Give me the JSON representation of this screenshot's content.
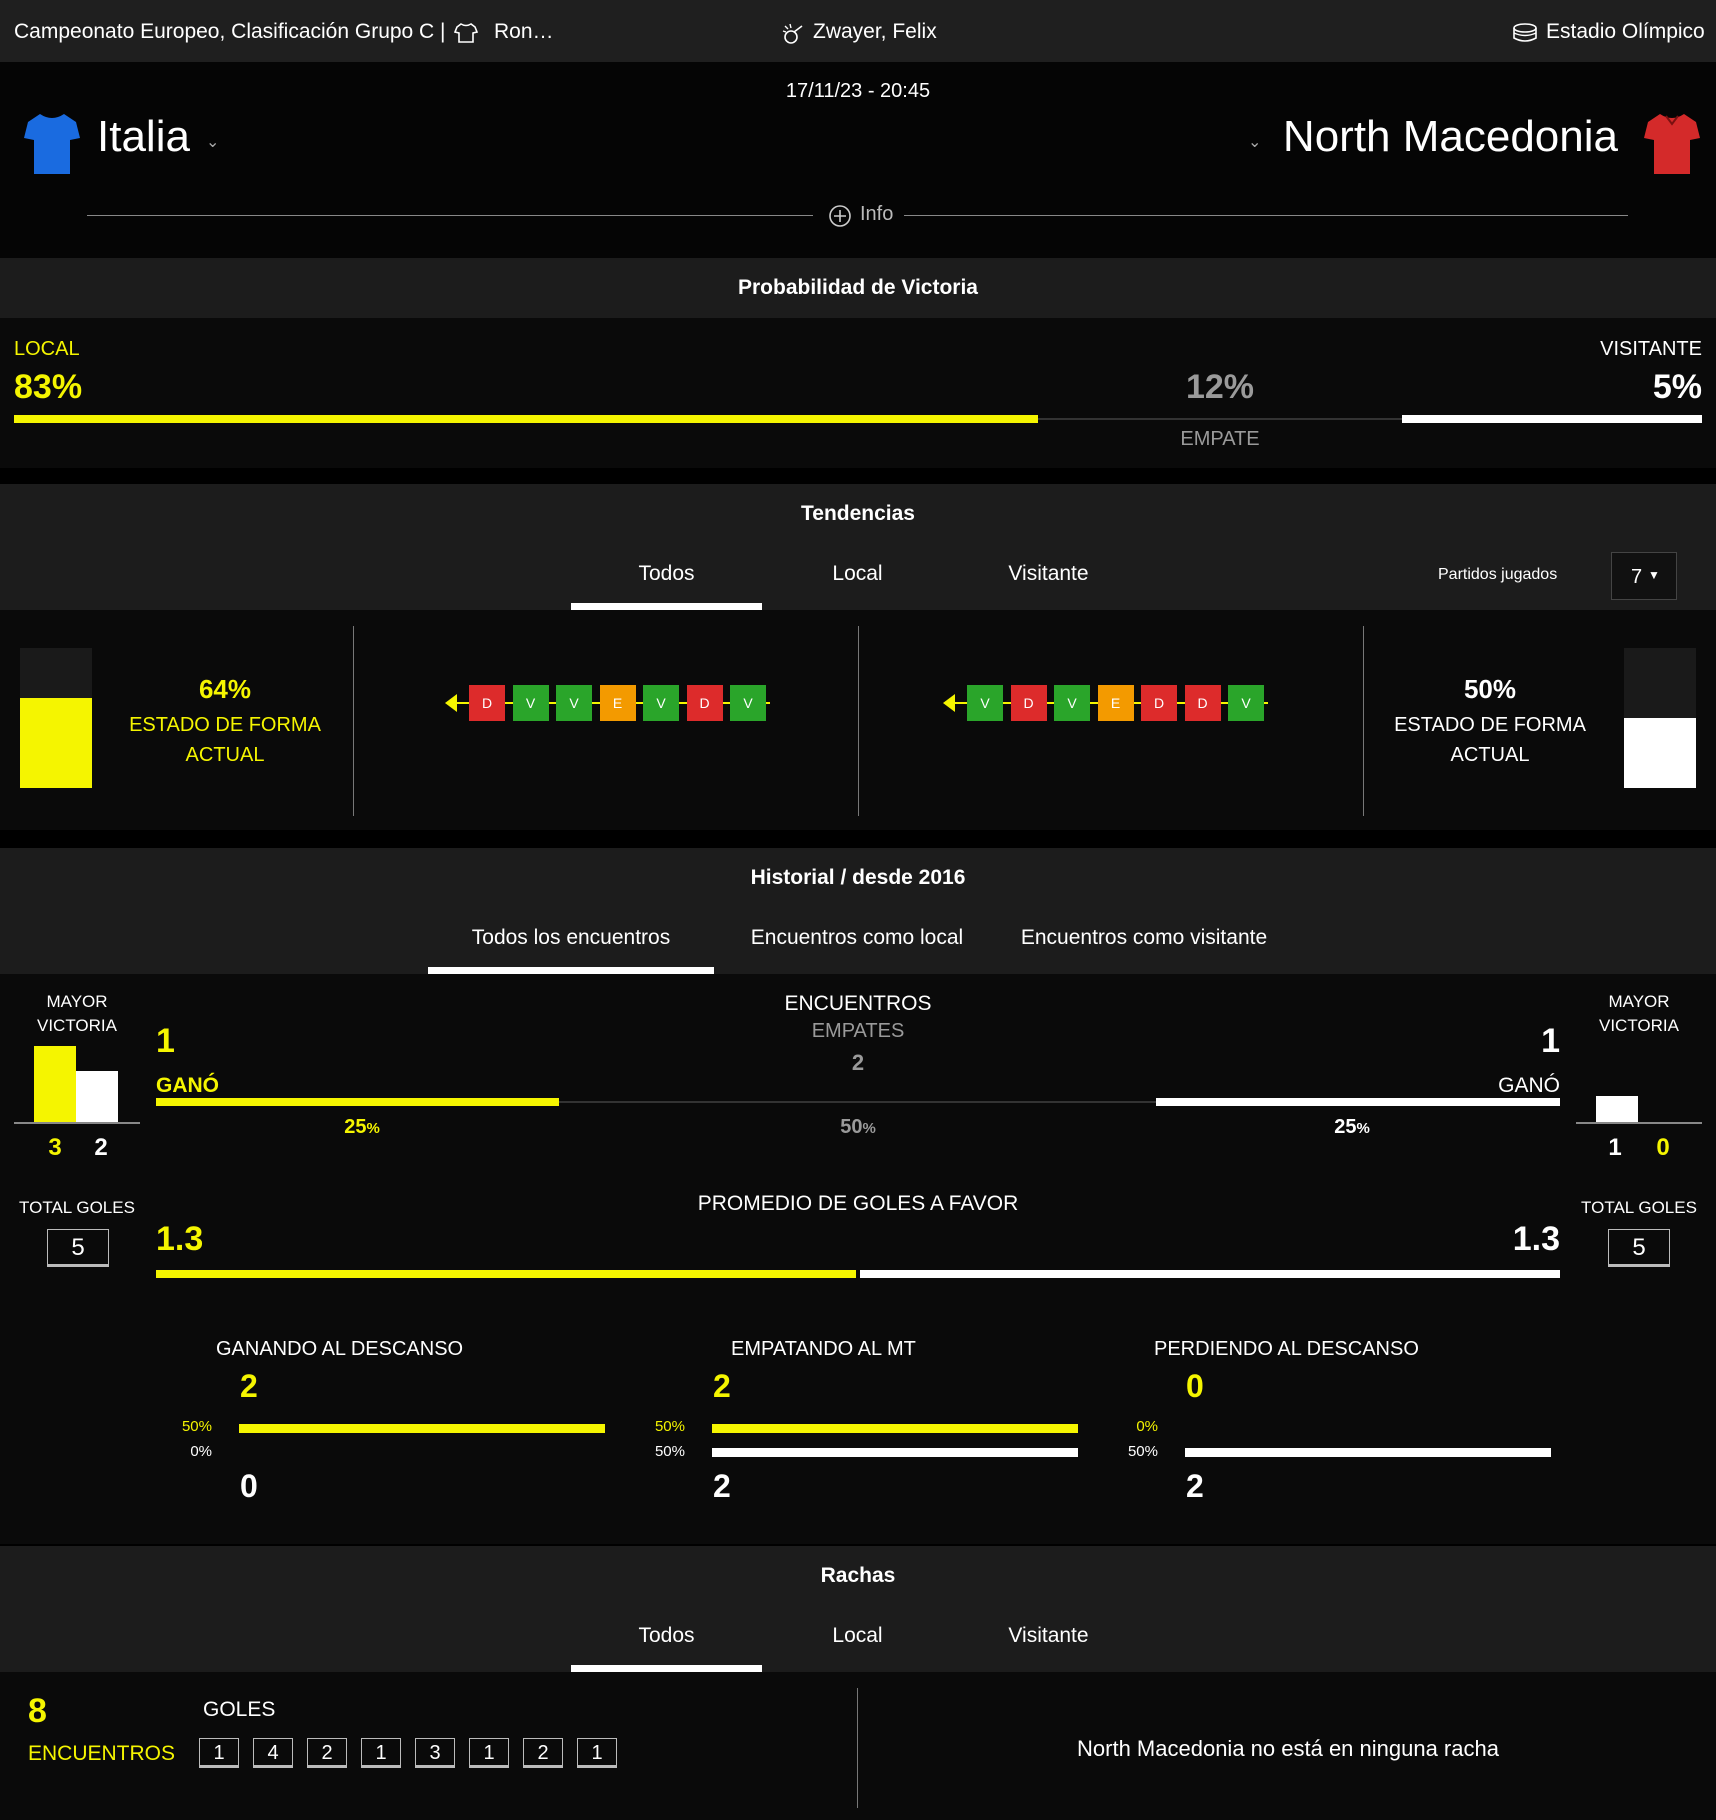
{
  "topbar": {
    "competition": "Campeonato Europeo, Clasificación Grupo C |",
    "round": "Ron…",
    "referee": "Zwayer, Felix",
    "stadium": "Estadio Olímpico"
  },
  "match": {
    "datetime": "17/11/23 - 20:45",
    "home": "Italia",
    "away": "North Macedonia",
    "info_label": "Info",
    "home_shirt_color": "#1a6be0",
    "away_shirt_color": "#d42a2a"
  },
  "win_prob": {
    "title": "Probabilidad de Victoria",
    "home_label": "LOCAL",
    "home_value": "83%",
    "draw_value": "12%",
    "draw_label": "EMPATE",
    "away_label": "VISITANTE",
    "away_value": "5%"
  },
  "trends": {
    "title": "Tendencias",
    "tabs": [
      "Todos",
      "Local",
      "Visitante"
    ],
    "played_label": "Partidos jugados",
    "played_value": "7",
    "home_form_pct": "64%",
    "home_form_label": "ESTADO DE FORMA ACTUAL",
    "away_form_pct": "50%",
    "away_form_label": "ESTADO DE FORMA ACTUAL",
    "home_results": [
      "D",
      "V",
      "V",
      "E",
      "V",
      "D",
      "V"
    ],
    "away_results": [
      "V",
      "D",
      "V",
      "E",
      "D",
      "D",
      "V"
    ],
    "home_form_fill": 0.64,
    "away_form_fill": 0.5
  },
  "history": {
    "title": "Historial / desde 2016",
    "tabs": [
      "Todos los encuentros",
      "Encuentros como local",
      "Encuentros como visitante"
    ],
    "biggest_win_label": "MAYOR VICTORIA",
    "home_biggest": [
      "3",
      "2"
    ],
    "away_biggest": [
      "1",
      "0"
    ],
    "encounters_label": "ENCUENTROS",
    "draws_label": "EMPATES",
    "draws_value": "2",
    "home_wins": "1",
    "away_wins": "1",
    "won_label": "GANÓ",
    "home_pct": "25",
    "draw_pct": "50",
    "away_pct": "25",
    "pct_sign": "%",
    "total_goals_label": "TOTAL GOLES",
    "home_total_goals": "5",
    "away_total_goals": "5",
    "avg_goals_label": "PROMEDIO DE GOLES A FAVOR",
    "home_avg": "1.3",
    "away_avg": "1.3",
    "halftime": [
      {
        "label": "GANANDO AL DESCANSO",
        "top_value": "2",
        "top_pct": "50%",
        "bottom_pct": "0%",
        "bottom_value": "0",
        "top_fill": 1,
        "bottom_fill": 0
      },
      {
        "label": "EMPATANDO AL MT",
        "top_value": "2",
        "top_pct": "50%",
        "bottom_pct": "50%",
        "bottom_value": "2",
        "top_fill": 1,
        "bottom_fill": 1
      },
      {
        "label": "PERDIENDO AL DESCANSO",
        "top_value": "0",
        "top_pct": "0%",
        "bottom_pct": "50%",
        "bottom_value": "2",
        "top_fill": 0,
        "bottom_fill": 1
      }
    ]
  },
  "streaks": {
    "title": "Rachas",
    "tabs": [
      "Todos",
      "Local",
      "Visitante"
    ],
    "count": "8",
    "count_label": "ENCUENTROS",
    "goals_label": "GOLES",
    "goals": [
      "1",
      "4",
      "2",
      "1",
      "3",
      "1",
      "2",
      "1"
    ],
    "away_message": "North Macedonia no está en ninguna racha"
  },
  "colors": {
    "home_accent": "#f5f500",
    "away_accent": "#ffffff",
    "win": "#2aa52a",
    "loss": "#dd2b2b",
    "draw": "#f39a00"
  }
}
